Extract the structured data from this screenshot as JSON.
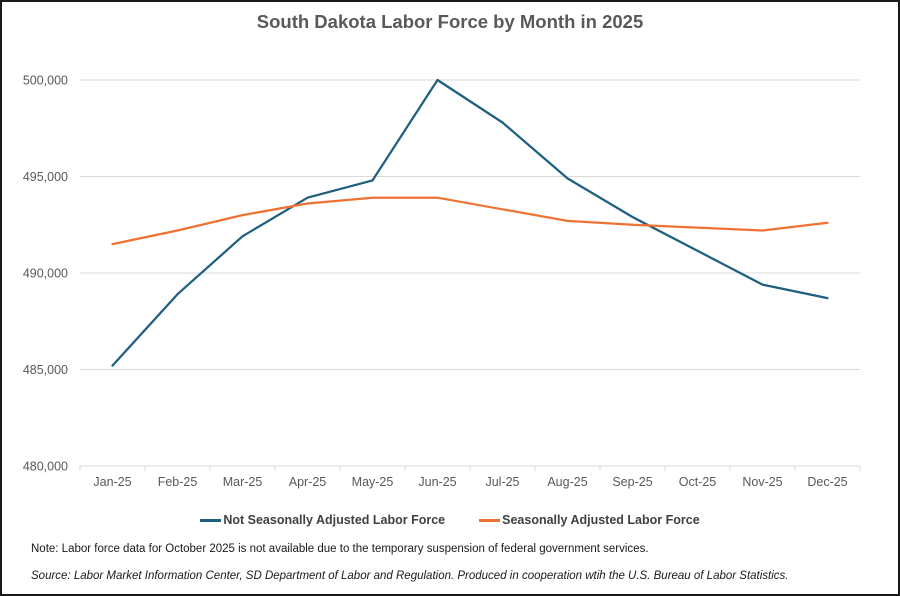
{
  "chart_data": {
    "type": "line",
    "title": "South Dakota Labor Force by Month in 2025",
    "xlabel": "",
    "ylabel": "",
    "ylim": [
      480000,
      500000
    ],
    "yticks": [
      480000,
      485000,
      490000,
      495000,
      500000
    ],
    "ytick_labels": [
      "480,000",
      "485,000",
      "490,000",
      "495,000",
      "500,000"
    ],
    "grid": "horizontal",
    "legend_position": "bottom",
    "categories": [
      "Jan-25",
      "Feb-25",
      "Mar-25",
      "Apr-25",
      "May-25",
      "Jun-25",
      "Jul-25",
      "Aug-25",
      "Sep-25",
      "Oct-25",
      "Nov-25",
      "Dec-25"
    ],
    "series": [
      {
        "name": "Not Seasonally Adjusted Labor Force",
        "color": "#1f5f7f",
        "values": [
          485200,
          488900,
          491900,
          493900,
          494800,
          500000,
          497800,
          494900,
          492900,
          null,
          489400,
          488700
        ]
      },
      {
        "name": "Seasonally Adjusted Labor Force",
        "color": "#f07233",
        "values": [
          491500,
          492200,
          493000,
          493600,
          493900,
          493900,
          493300,
          492700,
          492500,
          null,
          492200,
          492600
        ]
      }
    ],
    "annotations": [
      "Note: Labor force data for October 2025 is not available due to the temporary suspension of federal government services.",
      "Source: Labor Market Information Center, SD Department of Labor and Regulation.  Produced in cooperation wtih  the U.S. Bureau of Labor Statistics."
    ]
  },
  "title": "South Dakota Labor Force by Month in 2025",
  "legend": {
    "items": [
      {
        "label": "Not Seasonally Adjusted Labor Force",
        "color": "#1f5f7f"
      },
      {
        "label": "Seasonally Adjusted Labor Force",
        "color": "#f07233"
      }
    ]
  },
  "footer": {
    "note": "Note: Labor force data for October 2025 is not available due to the temporary suspension of federal government services.",
    "source": "Source: Labor Market Information Center, SD Department of Labor and Regulation.  Produced in cooperation wtih  the U.S. Bureau of Labor Statistics."
  },
  "style": {
    "gridline_color": "#d9d9d9",
    "axis_label_color": "#595959"
  }
}
